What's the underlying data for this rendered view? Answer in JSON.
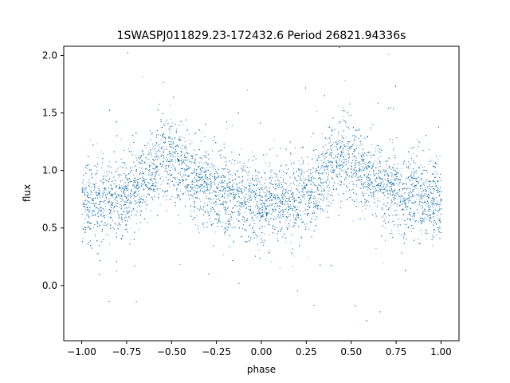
{
  "chart_data": {
    "type": "scatter",
    "title": "1SWASPJ011829.23-172432.6 Period 26821.94336s",
    "xlabel": "phase",
    "ylabel": "flux",
    "xlim": [
      -1.1,
      1.1
    ],
    "ylim": [
      -0.48,
      2.08
    ],
    "x_ticks": [
      -1.0,
      -0.75,
      -0.5,
      -0.25,
      0.0,
      0.25,
      0.5,
      0.75,
      1.0
    ],
    "x_tick_labels": [
      "−1.00",
      "−0.75",
      "−0.50",
      "−0.25",
      "0.00",
      "0.25",
      "0.50",
      "0.75",
      "1.00"
    ],
    "y_ticks": [
      0.0,
      0.5,
      1.0,
      1.5,
      2.0
    ],
    "y_tick_labels": [
      "0.0",
      "0.5",
      "1.0",
      "1.5",
      "2.0"
    ],
    "grid": false,
    "point_color": "#1f77b4",
    "series": [
      {
        "x_range": [
          -1.0,
          1.0
        ],
        "point_count": 16000,
        "phase_curve": {
          "phase": [
            -1.0,
            -0.9,
            -0.8,
            -0.7,
            -0.6,
            -0.55,
            -0.5,
            -0.4,
            -0.3,
            -0.2,
            -0.1,
            0.0,
            0.1,
            0.2,
            0.3,
            0.4,
            0.45,
            0.5,
            0.6,
            0.7,
            0.8,
            0.9,
            1.0
          ],
          "flux": [
            0.72,
            0.72,
            0.75,
            0.85,
            1.05,
            1.15,
            1.1,
            0.95,
            0.85,
            0.8,
            0.75,
            0.72,
            0.72,
            0.75,
            0.85,
            1.05,
            1.15,
            1.1,
            0.95,
            0.85,
            0.8,
            0.75,
            0.72
          ]
        },
        "scatter_sigma": 0.17,
        "outlier_fraction": 0.04
      }
    ]
  }
}
